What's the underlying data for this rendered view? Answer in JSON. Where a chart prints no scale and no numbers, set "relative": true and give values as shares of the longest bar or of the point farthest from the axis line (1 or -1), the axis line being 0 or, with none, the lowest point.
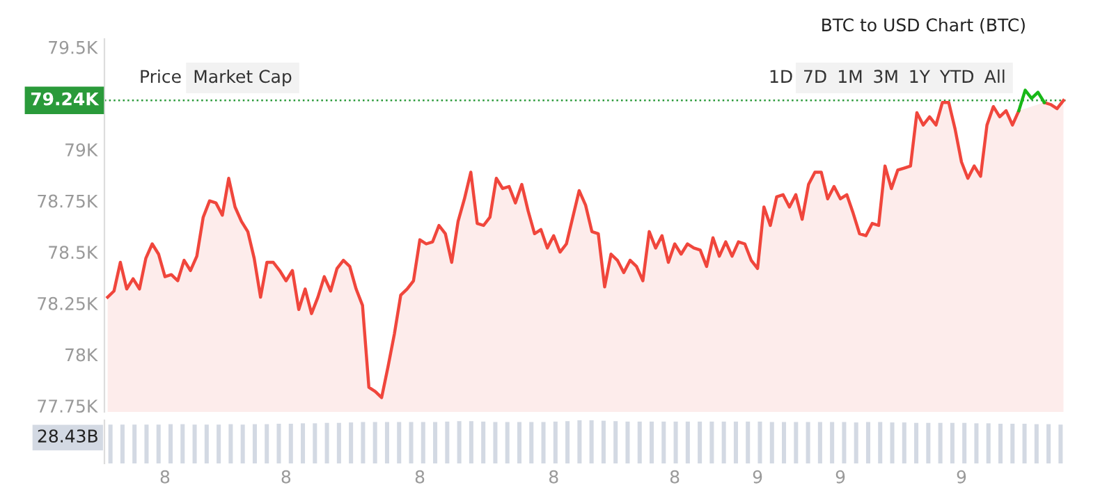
{
  "chart_data": [
    {
      "type": "area",
      "title": "BTC to USD Chart (BTC)",
      "categories": [
        null,
        null,
        null,
        null,
        null,
        null,
        null,
        null,
        null,
        "8",
        null,
        null,
        null,
        null,
        null,
        null,
        null,
        null,
        null,
        null,
        null,
        null,
        null,
        null,
        null,
        null,
        null,
        null,
        "8",
        null,
        null,
        null,
        null,
        null,
        null,
        null,
        null,
        null,
        null,
        null,
        null,
        null,
        null,
        null,
        null,
        null,
        null,
        null,
        null,
        "8",
        null,
        null,
        null,
        null,
        null,
        null,
        null,
        null,
        null,
        null,
        null,
        null,
        null,
        null,
        null,
        null,
        null,
        null,
        null,
        null,
        "8",
        null,
        null,
        null,
        null,
        null,
        null,
        null,
        null,
        null,
        null,
        null,
        null,
        null,
        null,
        null,
        null,
        null,
        null,
        "8",
        null,
        null,
        null,
        null,
        null,
        null,
        null,
        null,
        null,
        null,
        null,
        null,
        "9",
        null,
        null,
        null,
        null,
        null,
        null,
        null,
        null,
        null,
        null,
        null,
        null,
        "9",
        null,
        null,
        null,
        null,
        null,
        null,
        null,
        null,
        null,
        null,
        null,
        null,
        null,
        null,
        null,
        null,
        null,
        null,
        "9",
        null,
        null,
        null,
        null,
        null,
        null,
        null,
        null,
        null,
        null,
        null,
        null,
        null,
        null,
        null,
        null
      ],
      "series": [
        {
          "color": "#f0463c",
          "values": [
            78.28,
            78.31,
            78.45,
            78.32,
            78.37,
            78.32,
            78.47,
            78.54,
            78.49,
            78.38,
            78.39,
            78.36,
            78.46,
            78.41,
            78.48,
            78.67,
            78.75,
            78.74,
            78.68,
            78.86,
            78.72,
            78.65,
            78.6,
            78.47,
            78.28,
            78.45,
            78.45,
            78.41,
            78.36,
            78.41,
            78.22,
            78.32,
            78.2,
            78.28,
            78.38,
            78.31,
            78.42,
            78.46,
            78.43,
            78.32,
            78.24,
            77.84,
            77.82,
            77.79,
            77.94,
            78.1,
            78.29,
            78.32,
            78.36,
            78.56,
            78.54,
            78.55,
            78.63,
            78.59,
            78.45,
            78.65,
            78.76,
            78.89,
            78.64,
            78.63,
            78.67,
            78.86,
            78.81,
            78.82,
            78.74,
            78.83,
            78.7,
            78.59,
            78.61,
            78.52,
            78.58,
            78.5,
            78.54,
            78.67,
            78.8,
            78.73,
            78.6,
            78.59,
            78.33,
            78.49,
            78.46,
            78.4,
            78.46,
            78.43,
            78.36,
            78.6,
            78.52,
            78.58,
            78.45,
            78.54,
            78.49,
            78.54,
            78.52,
            78.51,
            78.43,
            78.57,
            78.48,
            78.55,
            78.48,
            78.55,
            78.54,
            78.46,
            78.42,
            78.72,
            78.63,
            78.77,
            78.78,
            78.72,
            78.78,
            78.66,
            78.83,
            78.89,
            78.89,
            78.76,
            78.82,
            78.76,
            78.78,
            78.69,
            78.59,
            78.58,
            78.64,
            78.63,
            78.92,
            78.81,
            78.9,
            78.91,
            78.92,
            79.18,
            79.12,
            79.16,
            79.12,
            79.23,
            79.23,
            79.1,
            78.94,
            78.86,
            78.92,
            78.87,
            79.12,
            79.21,
            79.16,
            79.19,
            79.12,
            79.19,
            null,
            null,
            null,
            79.23,
            79.22,
            79.2,
            79.24
          ]
        },
        {
          "type": "line",
          "color": "#18b818",
          "values": [
            null,
            null,
            null,
            null,
            null,
            null,
            null,
            null,
            null,
            null,
            null,
            null,
            null,
            null,
            null,
            null,
            null,
            null,
            null,
            null,
            null,
            null,
            null,
            null,
            null,
            null,
            null,
            null,
            null,
            null,
            null,
            null,
            null,
            null,
            null,
            null,
            null,
            null,
            null,
            null,
            null,
            null,
            null,
            null,
            null,
            null,
            null,
            null,
            null,
            null,
            null,
            null,
            null,
            null,
            null,
            null,
            null,
            null,
            null,
            null,
            null,
            null,
            null,
            null,
            null,
            null,
            null,
            null,
            null,
            null,
            null,
            null,
            null,
            null,
            null,
            null,
            null,
            null,
            null,
            null,
            null,
            null,
            null,
            null,
            null,
            null,
            null,
            null,
            null,
            null,
            null,
            null,
            null,
            null,
            null,
            null,
            null,
            null,
            null,
            null,
            null,
            null,
            null,
            null,
            null,
            null,
            null,
            null,
            null,
            null,
            null,
            null,
            null,
            null,
            null,
            null,
            null,
            null,
            null,
            null,
            null,
            null,
            null,
            null,
            null,
            null,
            null,
            null,
            null,
            null,
            null,
            null,
            null,
            null,
            null,
            null,
            null,
            null,
            null,
            null,
            null,
            null,
            null,
            79.19,
            79.29,
            79.25,
            79.28,
            79.23,
            null,
            null,
            null
          ]
        }
      ],
      "ylim": [
        77.72,
        79.54
      ],
      "yticks": [
        {
          "value": 77.75,
          "label": "77.75K"
        },
        {
          "value": 78,
          "label": "78K"
        },
        {
          "value": 78.25,
          "label": "78.25K"
        },
        {
          "value": 78.5,
          "label": "78.5K"
        },
        {
          "value": 78.75,
          "label": "78.75K"
        },
        {
          "value": 79,
          "label": "79K"
        },
        {
          "value": 79.5,
          "label": "79.5K"
        }
      ],
      "ref_lines": [
        {
          "axis": "y",
          "value": 79.24,
          "label": "79.24K",
          "color": "#2a9a3a",
          "line_style": "dotted"
        }
      ],
      "annotations": [
        "Price",
        "Market Cap",
        "1D",
        "7D",
        "1M",
        "3M",
        "1Y",
        "YTD",
        "All"
      ]
    },
    {
      "type": "bar",
      "relative": true,
      "color": "#d3d9e3",
      "categories": [
        null,
        null,
        null,
        null,
        null,
        null,
        null,
        null,
        null,
        null,
        null,
        null,
        null,
        null,
        null,
        null,
        null,
        null,
        null,
        null,
        null,
        null,
        null,
        null,
        null,
        null,
        null,
        null,
        null,
        null,
        null,
        null,
        null,
        null,
        null,
        null,
        null,
        null,
        null,
        null,
        null,
        null,
        null,
        null,
        null,
        null,
        null,
        null,
        null,
        null,
        null,
        null,
        null,
        null,
        null,
        null,
        null,
        null,
        null,
        null,
        null,
        null,
        null,
        null,
        null,
        null,
        null,
        null,
        null,
        null,
        null,
        null,
        null,
        null,
        null,
        null,
        null,
        null,
        null,
        null
      ],
      "values": [
        0.9,
        0.9,
        0.9,
        0.9,
        0.9,
        0.91,
        0.91,
        0.9,
        0.9,
        0.9,
        0.91,
        0.9,
        0.91,
        0.91,
        0.92,
        0.92,
        0.93,
        0.93,
        0.94,
        0.94,
        0.95,
        0.96,
        0.96,
        0.96,
        0.96,
        0.96,
        0.96,
        0.96,
        0.97,
        0.98,
        0.98,
        0.97,
        0.96,
        0.96,
        0.96,
        0.96,
        0.96,
        0.97,
        0.98,
        1.0,
        1.0,
        0.99,
        0.98,
        0.97,
        0.97,
        0.97,
        0.97,
        0.97,
        0.97,
        0.97,
        0.97,
        0.97,
        0.97,
        0.97,
        0.97,
        0.96,
        0.96,
        0.96,
        0.96,
        0.96,
        0.96,
        0.96,
        0.95,
        0.96,
        0.96,
        0.95,
        0.95,
        0.94,
        0.94,
        0.94,
        0.94,
        0.94,
        0.93,
        0.93,
        0.92,
        0.92,
        0.92,
        0.91,
        0.91,
        0.9
      ],
      "annotations": [
        "28.43B"
      ]
    }
  ]
}
